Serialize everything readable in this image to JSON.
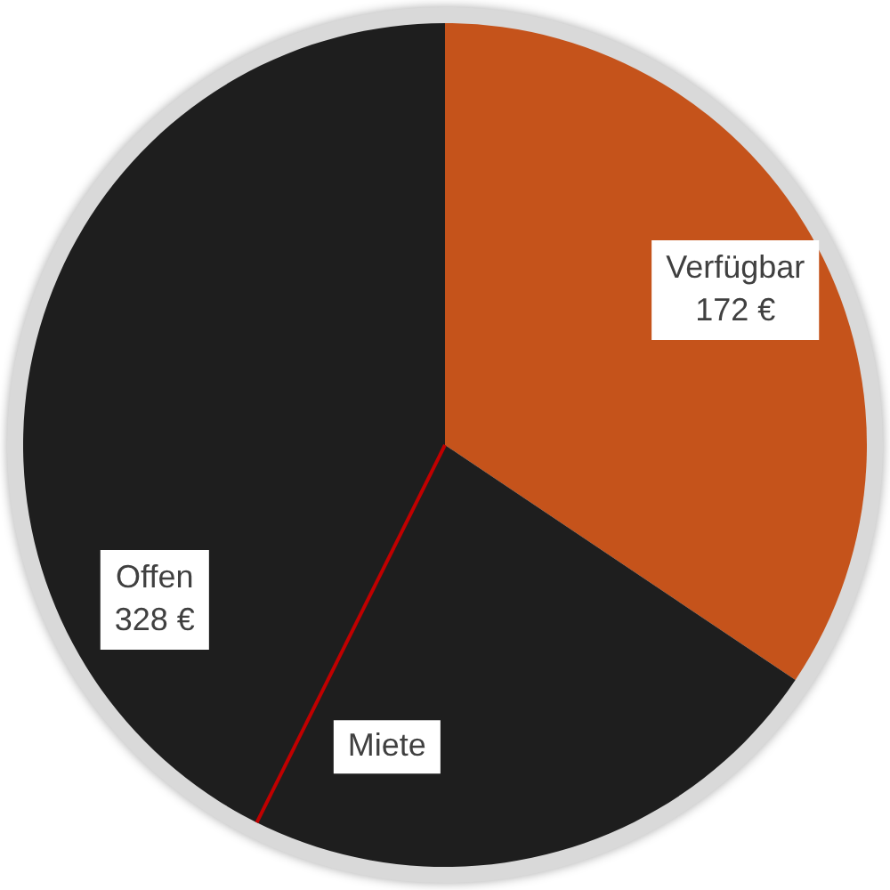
{
  "chart_data": {
    "type": "pie",
    "categories": [
      "Verfügbar",
      "Offen"
    ],
    "values": [
      172,
      328
    ],
    "colors": [
      "#c5531b",
      "#1e1e1e"
    ],
    "value_labels": [
      "172 €",
      "328 €"
    ],
    "needle": "Offen",
    "annotations": [
      "Miete"
    ],
    "legend": false
  }
}
